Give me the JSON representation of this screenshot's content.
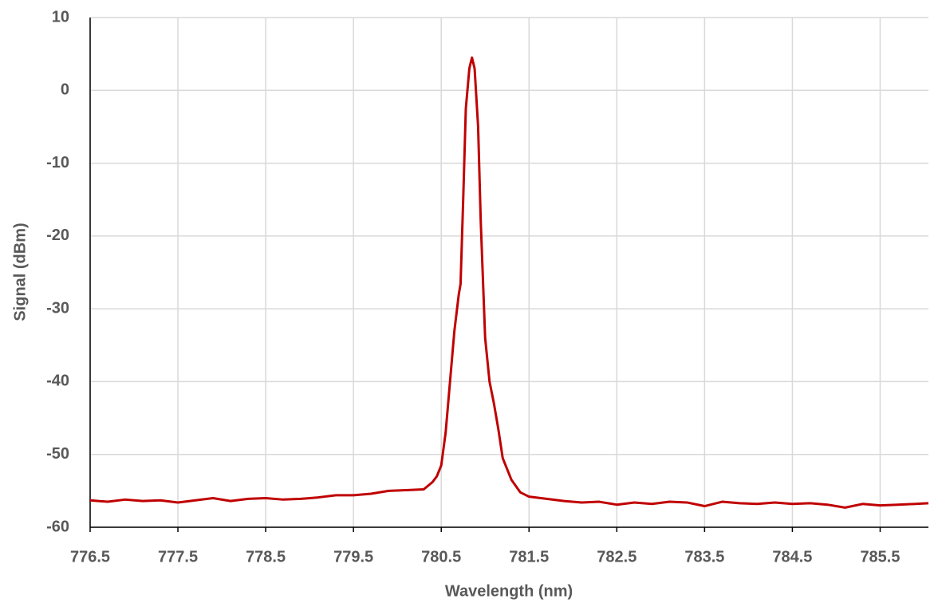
{
  "chart_data": {
    "type": "line",
    "xlabel": "Wavelength (nm)",
    "ylabel": "Signal (dBm)",
    "xlim": [
      776.5,
      786.05
    ],
    "ylim": [
      -60,
      10
    ],
    "xticks": [
      776.5,
      777.5,
      778.5,
      779.5,
      780.5,
      781.5,
      782.5,
      783.5,
      784.5,
      785.5
    ],
    "yticks": [
      -60,
      -50,
      -40,
      -30,
      -20,
      -10,
      0,
      10
    ],
    "grid": true,
    "series": [
      {
        "color": "#c00000",
        "x": [
          776.5,
          776.7,
          776.9,
          777.1,
          777.3,
          777.5,
          777.7,
          777.9,
          778.1,
          778.3,
          778.5,
          778.7,
          778.9,
          779.1,
          779.3,
          779.5,
          779.7,
          779.9,
          780.1,
          780.3,
          780.4,
          780.45,
          780.5,
          780.55,
          780.6,
          780.65,
          780.7,
          780.72,
          780.75,
          780.78,
          780.82,
          780.85,
          780.88,
          780.92,
          780.95,
          781.0,
          781.05,
          781.1,
          781.15,
          781.2,
          781.3,
          781.4,
          781.5,
          781.7,
          781.9,
          782.1,
          782.3,
          782.5,
          782.7,
          782.9,
          783.1,
          783.3,
          783.5,
          783.7,
          783.9,
          784.1,
          784.3,
          784.5,
          784.7,
          784.9,
          785.1,
          785.3,
          785.5,
          785.7,
          785.9,
          786.05
        ],
        "values": [
          -56.3,
          -56.5,
          -56.2,
          -56.4,
          -56.3,
          -56.6,
          -56.3,
          -56.0,
          -56.4,
          -56.1,
          -56.0,
          -56.2,
          -56.1,
          -55.9,
          -55.6,
          -55.6,
          -55.4,
          -55.0,
          -54.9,
          -54.8,
          -53.8,
          -53.0,
          -51.5,
          -47.0,
          -40.0,
          -33.0,
          -28.0,
          -26.6,
          -15.0,
          -2.5,
          3.0,
          4.5,
          3.0,
          -5.0,
          -18.0,
          -34.0,
          -40.0,
          -43.0,
          -46.5,
          -50.5,
          -53.5,
          -55.2,
          -55.8,
          -56.1,
          -56.4,
          -56.6,
          -56.5,
          -56.9,
          -56.6,
          -56.8,
          -56.5,
          -56.6,
          -57.1,
          -56.5,
          -56.7,
          -56.8,
          -56.6,
          -56.8,
          -56.7,
          -56.9,
          -57.3,
          -56.8,
          -57.0,
          -56.9,
          -56.8,
          -56.7
        ]
      }
    ]
  }
}
